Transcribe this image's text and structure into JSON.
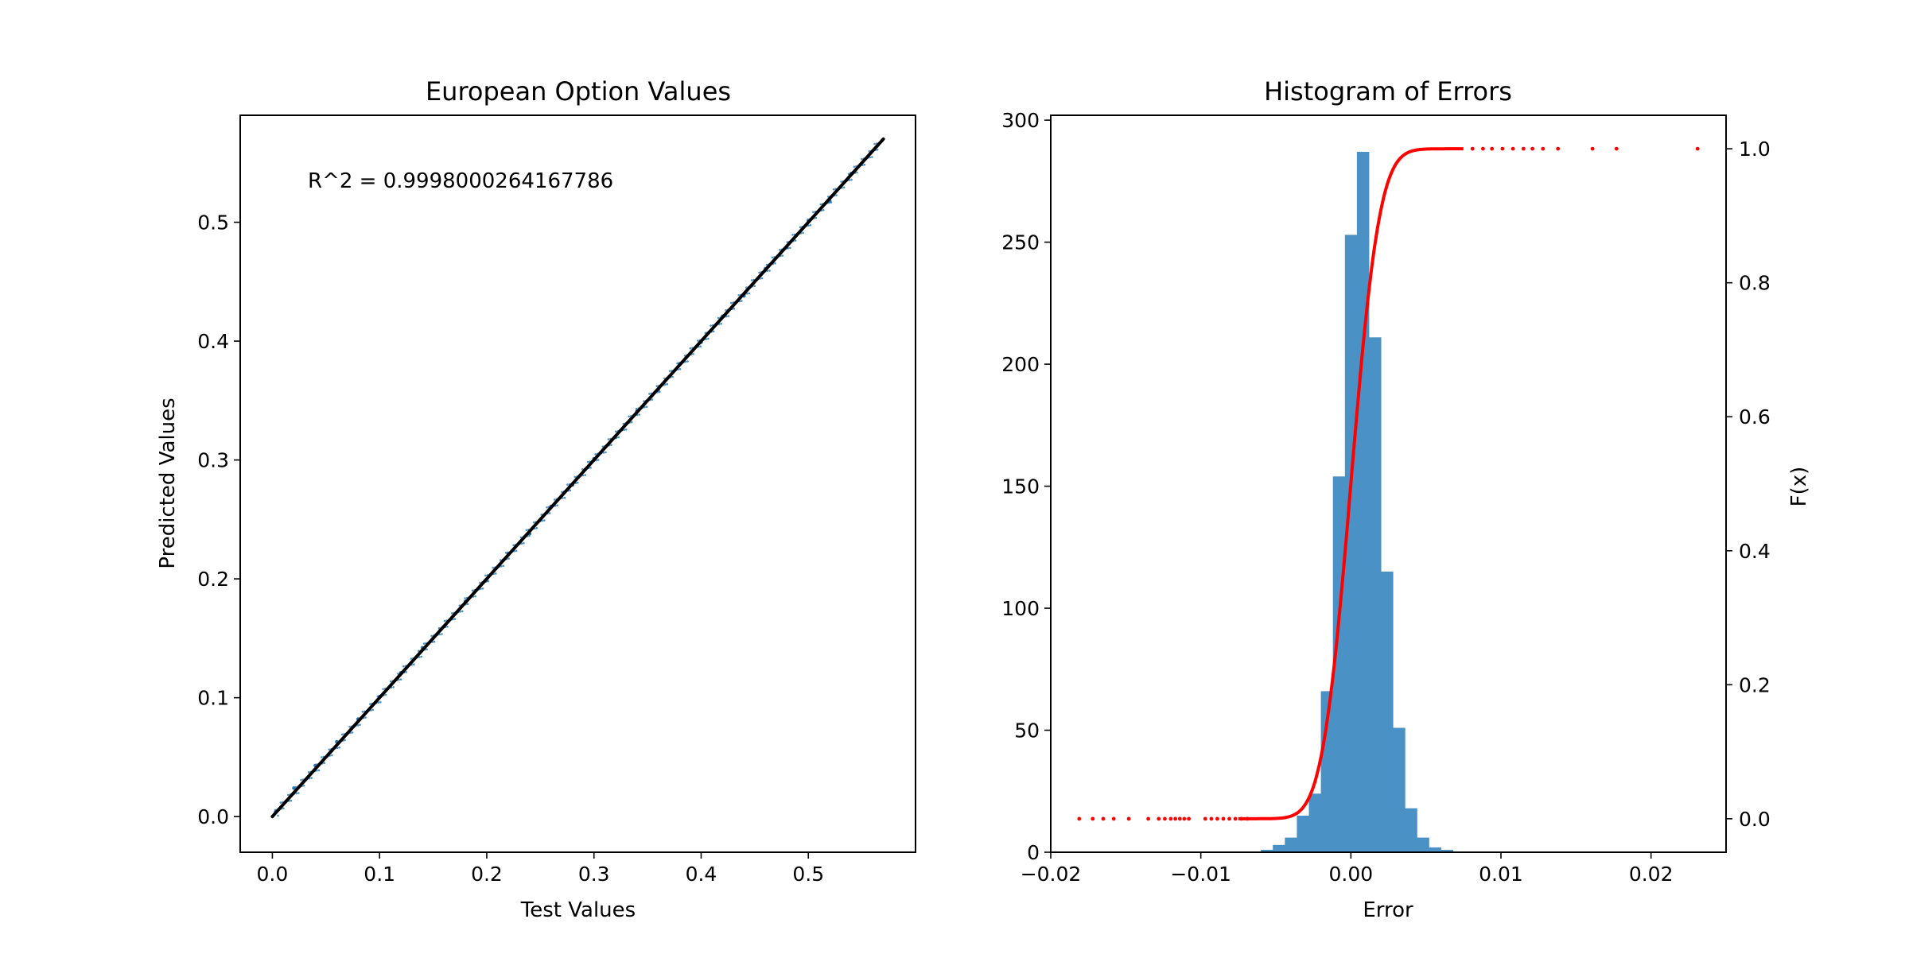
{
  "chart_data": [
    {
      "type": "scatter",
      "title": "European Option Values",
      "xlabel": "Test Values",
      "ylabel": "Predicted Values",
      "xlim": [
        -0.03,
        0.6
      ],
      "ylim": [
        -0.03,
        0.59
      ],
      "xticks": [
        0.0,
        0.1,
        0.2,
        0.3,
        0.4,
        0.5
      ],
      "xtick_labels": [
        "0.0",
        "0.1",
        "0.2",
        "0.3",
        "0.4",
        "0.5"
      ],
      "yticks": [
        0.0,
        0.1,
        0.2,
        0.3,
        0.4,
        0.5
      ],
      "ytick_labels": [
        "0.0",
        "0.1",
        "0.2",
        "0.3",
        "0.4",
        "0.5"
      ],
      "annotation": "R^2 = 0.9998000264167786",
      "grid": false,
      "series": [
        {
          "kind": "scatter",
          "color": "#1f77b4",
          "x": [
            0.003,
            0.02,
            0.04,
            0.06,
            0.08,
            0.1,
            0.12,
            0.14,
            0.16,
            0.18,
            0.2,
            0.22,
            0.24,
            0.26,
            0.28,
            0.3,
            0.32,
            0.34,
            0.36,
            0.38,
            0.4,
            0.42,
            0.44,
            0.46,
            0.48,
            0.5,
            0.52,
            0.54,
            0.565
          ],
          "y": [
            0.004,
            0.024,
            0.043,
            0.063,
            0.082,
            0.101,
            0.121,
            0.142,
            0.16,
            0.181,
            0.199,
            0.221,
            0.238,
            0.261,
            0.279,
            0.301,
            0.319,
            0.341,
            0.359,
            0.381,
            0.399,
            0.421,
            0.438,
            0.461,
            0.479,
            0.501,
            0.518,
            0.541,
            0.565
          ]
        },
        {
          "kind": "line",
          "color": "#000000",
          "x": [
            0.0,
            0.57
          ],
          "y": [
            0.0,
            0.57
          ]
        }
      ]
    },
    {
      "type": "bar",
      "title": "Histogram of Errors",
      "xlabel": "Error",
      "ylabel_right": "F(x)",
      "xlim": [
        -0.02,
        0.025
      ],
      "ylim": [
        0,
        302
      ],
      "ylim_right": [
        -0.05,
        1.05
      ],
      "xticks": [
        -0.02,
        -0.01,
        0.0,
        0.01,
        0.02
      ],
      "xtick_labels": [
        "−0.02",
        "−0.01",
        "0.00",
        "0.01",
        "0.02"
      ],
      "yticks": [
        0,
        50,
        100,
        150,
        200,
        250,
        300
      ],
      "ytick_labels": [
        "0",
        "50",
        "100",
        "150",
        "200",
        "250",
        "300"
      ],
      "yticks_right": [
        0.0,
        0.2,
        0.4,
        0.6,
        0.8,
        1.0
      ],
      "ytick_labels_right": [
        "0.0",
        "0.2",
        "0.4",
        "0.6",
        "0.8",
        "1.0"
      ],
      "grid": false,
      "histogram": {
        "color": "#4a91c5",
        "bin_width": 0.0008,
        "bin_left": [
          -0.006,
          -0.0052,
          -0.0044,
          -0.0036,
          -0.0028,
          -0.002,
          -0.0012,
          -0.0004,
          0.0004,
          0.0012,
          0.002,
          0.0028,
          0.0036,
          0.0044,
          0.0052,
          0.006
        ],
        "counts": [
          1,
          3,
          6,
          15,
          24,
          66,
          154,
          253,
          287,
          211,
          115,
          51,
          18,
          6,
          2,
          1
        ]
      },
      "cdf": {
        "color": "#ff0000",
        "mean": 0.0,
        "std": 0.0015,
        "outliers_x": [
          -0.0181,
          -0.0172,
          -0.0165,
          -0.0158,
          -0.0148,
          -0.0135,
          -0.0128,
          -0.0124,
          -0.012,
          -0.0117,
          -0.0114,
          -0.0111,
          -0.0108,
          -0.0097,
          -0.0093,
          -0.0089,
          -0.0085,
          -0.0081,
          -0.0077,
          -0.0073,
          -0.0069,
          0.0081,
          0.0088,
          0.0094,
          0.0101,
          0.0108,
          0.0115,
          0.0121,
          0.0128,
          0.0138,
          0.0161,
          0.0177,
          0.0231
        ]
      }
    }
  ]
}
